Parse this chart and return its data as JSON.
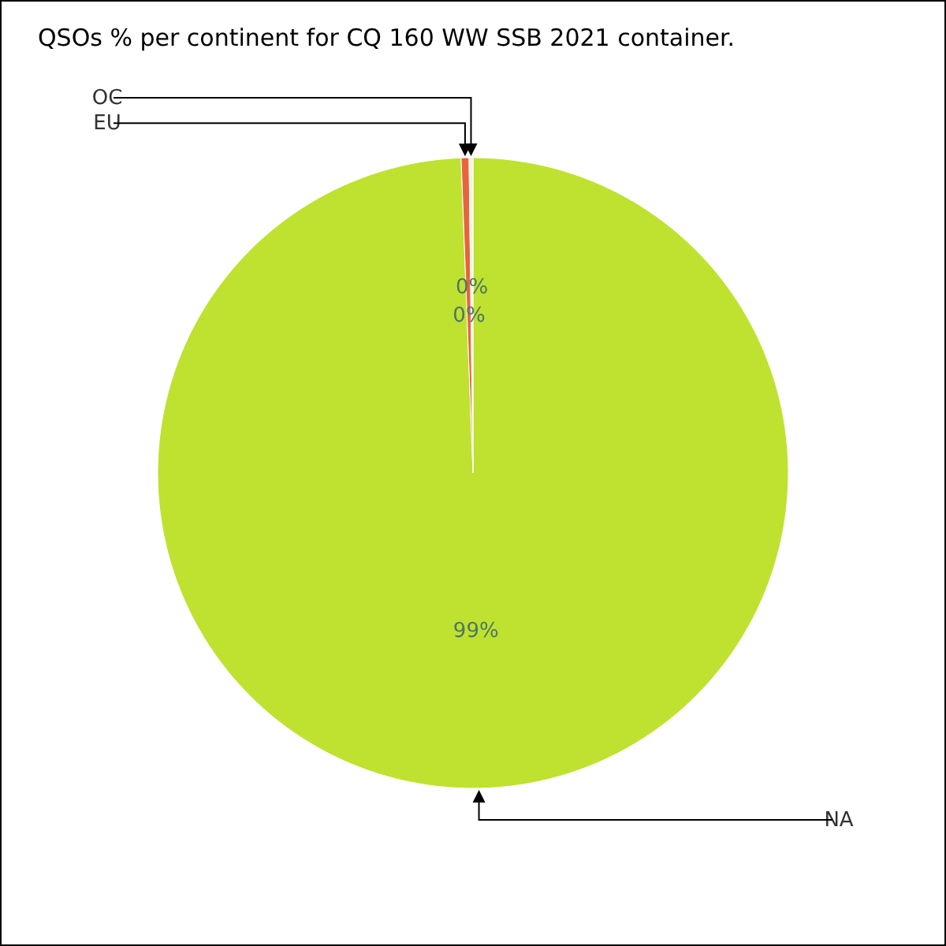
{
  "chart_data": {
    "type": "pie",
    "title": "QSOs % per continent for CQ 160 WW SSB 2021 container.",
    "categories": [
      "NA",
      "EU",
      "OC"
    ],
    "values": [
      99.4,
      0.4,
      0.2
    ],
    "colors": [
      "#bee22f",
      "#e8643a",
      "#f4f4e4"
    ],
    "value_labels": [
      "99%",
      "0%",
      "0%"
    ]
  }
}
